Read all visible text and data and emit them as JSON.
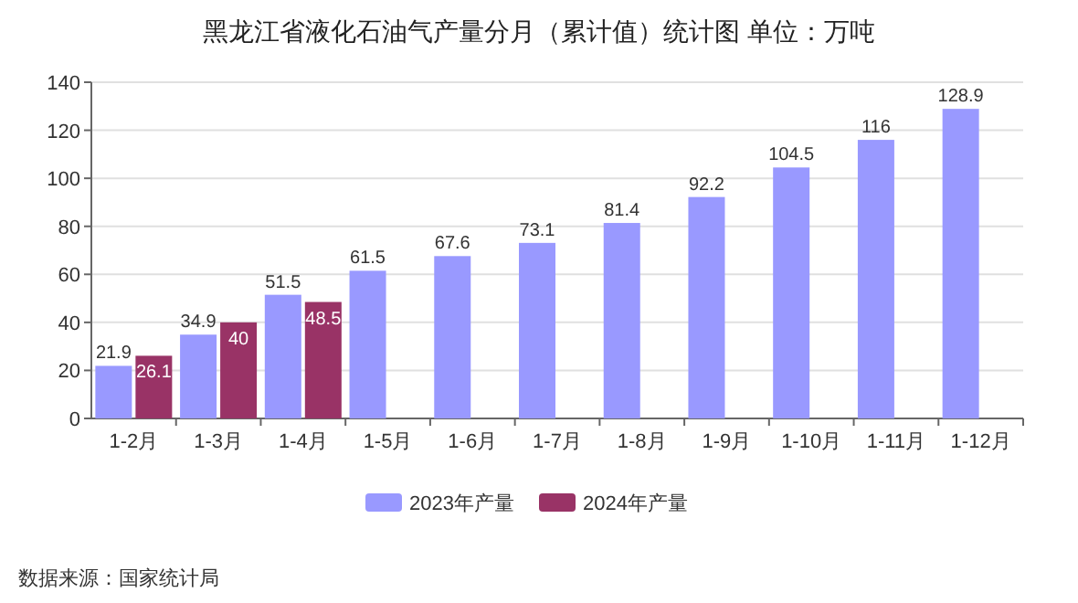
{
  "chart_data": {
    "type": "bar",
    "title": "黑龙江省液化石油气产量分月（累计值）统计图 单位：万吨",
    "categories": [
      "1-2月",
      "1-3月",
      "1-4月",
      "1-5月",
      "1-6月",
      "1-7月",
      "1-8月",
      "1-9月",
      "1-10月",
      "1-11月",
      "1-12月"
    ],
    "series": [
      {
        "name": "2023年产量",
        "color": "#9999ff",
        "values": [
          21.9,
          34.9,
          51.5,
          61.5,
          67.6,
          73.1,
          81.4,
          92.2,
          104.5,
          116,
          128.9
        ]
      },
      {
        "name": "2024年产量",
        "color": "#993366",
        "values": [
          26.1,
          40,
          48.5,
          null,
          null,
          null,
          null,
          null,
          null,
          null,
          null
        ]
      }
    ],
    "ylim": [
      0,
      140
    ],
    "yticks": [
      0,
      20,
      40,
      60,
      80,
      100,
      120,
      140
    ],
    "grid": "y",
    "legend": "bottom",
    "data_labels": true,
    "annotations": [
      "数据来源：国家统计局"
    ]
  }
}
